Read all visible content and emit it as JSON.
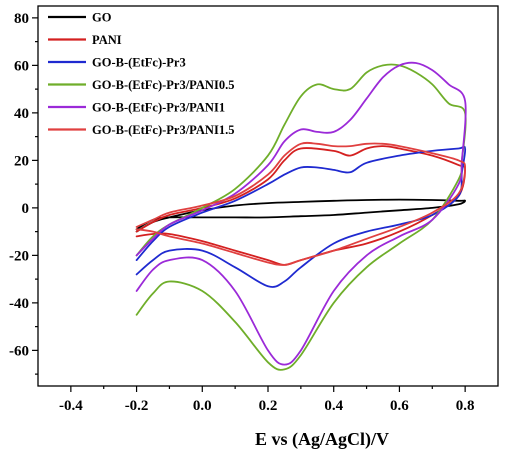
{
  "chart_data": {
    "type": "line",
    "xlabel": "E vs (Ag/AgCl)/V",
    "ylabel": "",
    "xlim": [
      -0.5,
      0.9
    ],
    "ylim": [
      -75,
      85
    ],
    "xticks": [
      -0.4,
      -0.2,
      0.0,
      0.2,
      0.4,
      0.6,
      0.8
    ],
    "xtick_labels": [
      "-0.4",
      "-0.2",
      "0.0",
      "0.2",
      "0.4",
      "0.6",
      "0.8"
    ],
    "yticks": [
      -60,
      -40,
      -20,
      0,
      20,
      40,
      60,
      80
    ],
    "ytick_labels": [
      "-60",
      "-40",
      "-20",
      "0",
      "20",
      "40",
      "60",
      "80"
    ],
    "grid": false,
    "legend_position": "top-left",
    "series": [
      {
        "name": "GO",
        "color": "#000000",
        "x": [
          -0.2,
          -0.15,
          -0.1,
          0.0,
          0.1,
          0.2,
          0.3,
          0.4,
          0.5,
          0.6,
          0.7,
          0.78,
          0.8,
          0.78,
          0.7,
          0.6,
          0.5,
          0.4,
          0.3,
          0.2,
          0.1,
          0.0,
          -0.1,
          -0.15,
          -0.2
        ],
        "y": [
          -10,
          -6,
          -4,
          -1,
          1,
          2,
          2.5,
          3,
          3.3,
          3.5,
          3.3,
          3,
          3,
          1.5,
          0,
          -1,
          -2,
          -3,
          -3.5,
          -4,
          -4,
          -4,
          -4,
          -5,
          -9
        ]
      },
      {
        "name": "PANI",
        "color": "#d42020",
        "x": [
          -0.2,
          -0.15,
          -0.1,
          0.0,
          0.1,
          0.2,
          0.25,
          0.3,
          0.4,
          0.45,
          0.5,
          0.55,
          0.6,
          0.7,
          0.78,
          0.8,
          0.78,
          0.7,
          0.6,
          0.5,
          0.4,
          0.3,
          0.25,
          0.2,
          0.1,
          0.0,
          -0.1,
          -0.15,
          -0.2
        ],
        "y": [
          -10,
          -6,
          -3,
          0,
          4,
          12,
          20,
          25,
          24,
          22,
          25,
          26,
          25,
          22,
          18,
          16,
          5,
          -3,
          -10,
          -15,
          -18,
          -22,
          -24,
          -22,
          -18,
          -14,
          -11,
          -11,
          -12
        ]
      },
      {
        "name": "GO-B-(EtFc)-Pr3",
        "color": "#1f2ad0",
        "x": [
          -0.2,
          -0.15,
          -0.1,
          0.0,
          0.1,
          0.2,
          0.25,
          0.3,
          0.35,
          0.4,
          0.45,
          0.5,
          0.6,
          0.7,
          0.78,
          0.8,
          0.79,
          0.78,
          0.7,
          0.6,
          0.5,
          0.4,
          0.3,
          0.25,
          0.2,
          0.1,
          0.0,
          -0.1,
          -0.15,
          -0.2
        ],
        "y": [
          -22,
          -14,
          -8,
          -2,
          3,
          10,
          14,
          17,
          17,
          16,
          15,
          19,
          22,
          24,
          25,
          25,
          15,
          5,
          -3,
          -7,
          -10,
          -15,
          -25,
          -31,
          -33,
          -25,
          -18,
          -18,
          -22,
          -28
        ]
      },
      {
        "name": "GO-B-(EtFc)-Pr3/PANI0.5",
        "color": "#6fae2a",
        "x": [
          -0.2,
          -0.15,
          -0.1,
          0.0,
          0.1,
          0.2,
          0.25,
          0.3,
          0.35,
          0.4,
          0.45,
          0.5,
          0.55,
          0.6,
          0.65,
          0.7,
          0.75,
          0.8,
          0.79,
          0.78,
          0.7,
          0.6,
          0.5,
          0.4,
          0.3,
          0.25,
          0.2,
          0.1,
          0.0,
          -0.1,
          -0.15,
          -0.2
        ],
        "y": [
          -20,
          -12,
          -7,
          0,
          8,
          22,
          35,
          47,
          52,
          50,
          50,
          57,
          60,
          60,
          57,
          52,
          44,
          40,
          20,
          12,
          -5,
          -15,
          -25,
          -40,
          -62,
          -68,
          -65,
          -48,
          -35,
          -31,
          -36,
          -45
        ]
      },
      {
        "name": "GO-B-(EtFc)-Pr3/PANI1",
        "color": "#9b2ad8",
        "x": [
          -0.2,
          -0.15,
          -0.1,
          0.0,
          0.1,
          0.2,
          0.25,
          0.3,
          0.35,
          0.4,
          0.45,
          0.5,
          0.55,
          0.6,
          0.65,
          0.7,
          0.75,
          0.8,
          0.79,
          0.78,
          0.7,
          0.6,
          0.5,
          0.4,
          0.3,
          0.25,
          0.2,
          0.1,
          0.0,
          -0.1,
          -0.15,
          -0.2
        ],
        "y": [
          -20,
          -13,
          -7,
          -1,
          6,
          18,
          28,
          33,
          32,
          32,
          37,
          46,
          55,
          60,
          61,
          58,
          52,
          45,
          20,
          10,
          -5,
          -12,
          -20,
          -35,
          -60,
          -66,
          -60,
          -35,
          -22,
          -22,
          -26,
          -35
        ]
      },
      {
        "name": "GO-B-(EtFc)-Pr3/PANI1.5",
        "color": "#e04040",
        "x": [
          -0.2,
          -0.15,
          -0.1,
          0.0,
          0.1,
          0.2,
          0.25,
          0.3,
          0.35,
          0.4,
          0.45,
          0.5,
          0.55,
          0.6,
          0.7,
          0.78,
          0.8,
          0.78,
          0.7,
          0.6,
          0.5,
          0.4,
          0.3,
          0.25,
          0.2,
          0.1,
          0.0,
          -0.1,
          -0.15,
          -0.2
        ],
        "y": [
          -8,
          -5,
          -2,
          1,
          5,
          14,
          22,
          27,
          27,
          26,
          26,
          27,
          27,
          26,
          23,
          20,
          17,
          6,
          -2,
          -8,
          -13,
          -18,
          -22,
          -24,
          -23,
          -19,
          -15,
          -12,
          -10,
          -9
        ]
      }
    ]
  }
}
